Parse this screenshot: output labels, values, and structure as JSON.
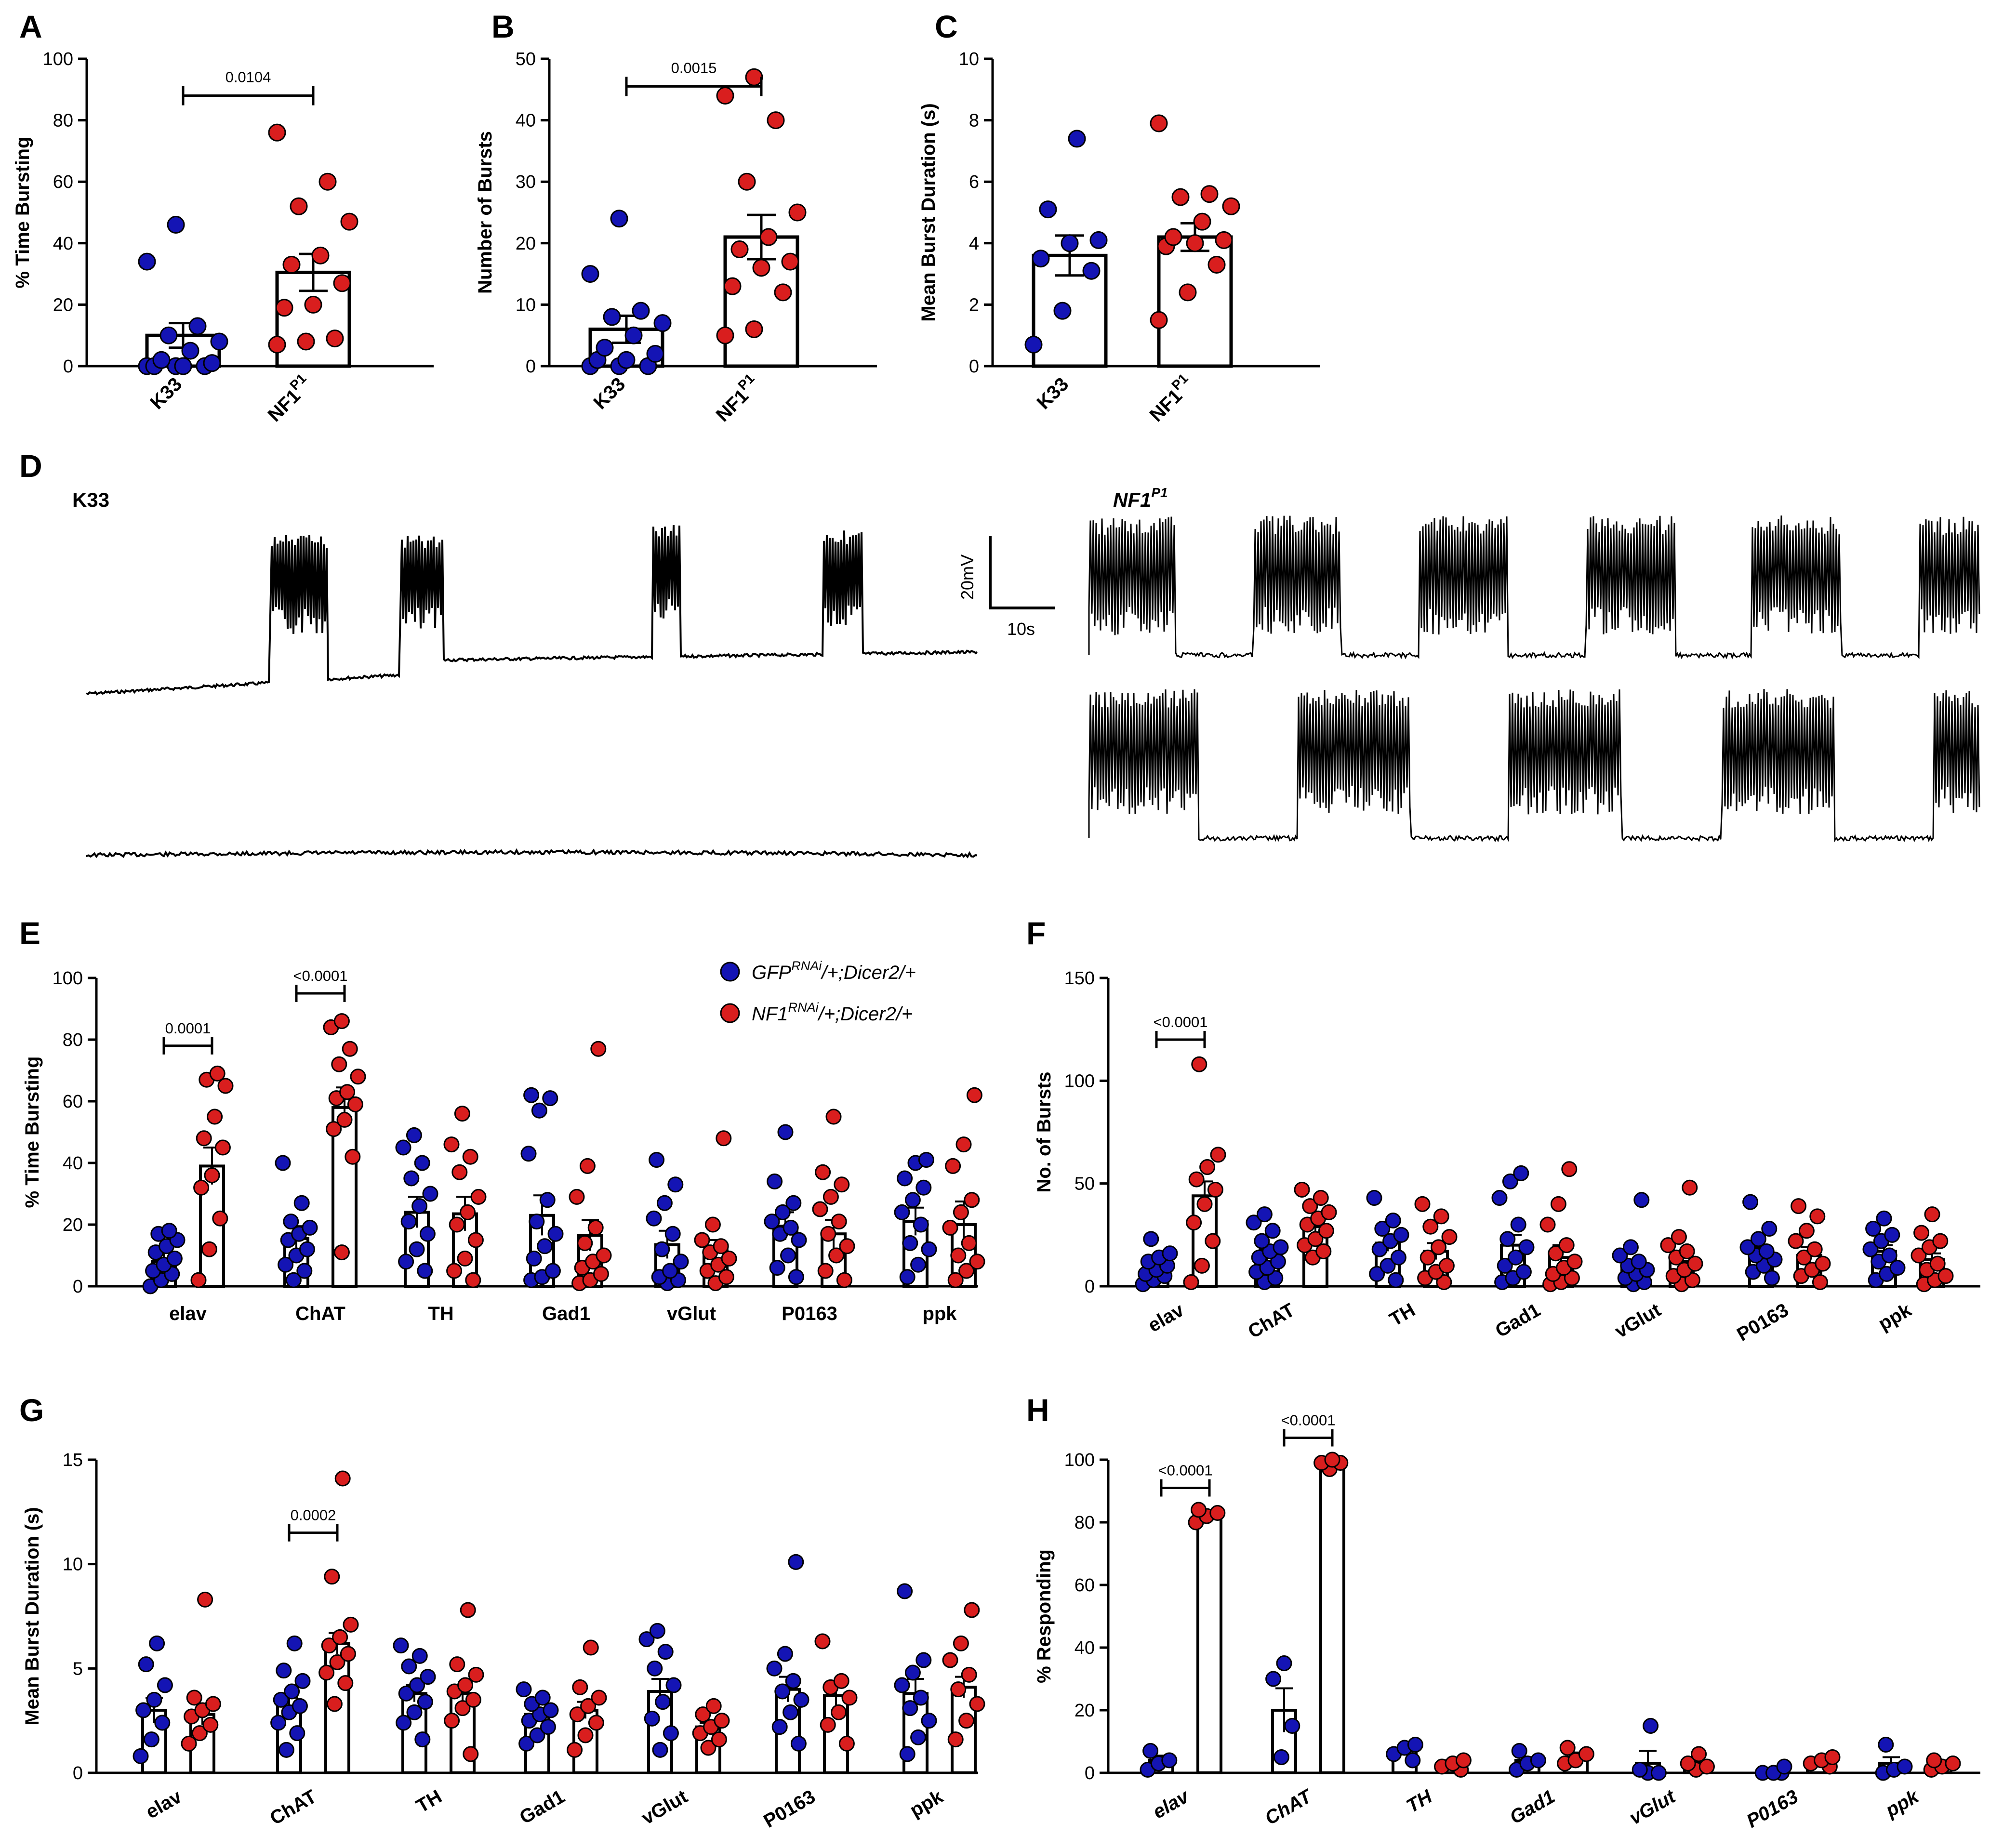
{
  "colors": {
    "genotype_a": "#1414b4",
    "genotype_b": "#d91e1e",
    "axis": "#000000"
  },
  "panel_labels": [
    "A",
    "B",
    "C",
    "D",
    "E",
    "F",
    "G",
    "H"
  ],
  "legend": {
    "a": "GFP",
    "a_sup": "RNAi",
    "a_rest": "/+;Dicer2/+",
    "b": "NF1",
    "b_sup": "RNAi",
    "b_rest": "/+;Dicer2/+"
  },
  "traces": {
    "left_label": "K33",
    "right_label_main": "NF1",
    "right_label_sup": "P1",
    "scale_v": "20mV",
    "scale_t": "10s"
  },
  "chart_data": [
    {
      "id": "A",
      "type": "bar",
      "ylabel": "% Time Bursting",
      "ylim": [
        0,
        100
      ],
      "yticks": [
        0,
        20,
        40,
        60,
        80,
        100
      ],
      "categories": [
        {
          "main": "K33",
          "sup": ""
        },
        {
          "main": "NF1",
          "sup": "P1"
        }
      ],
      "series": [
        {
          "color": "genotype_a",
          "mean": 10,
          "sem": 4,
          "points": [
            0,
            0,
            0,
            0,
            0,
            1,
            2,
            5,
            8,
            10,
            13,
            34,
            46
          ]
        },
        {
          "color": "genotype_b",
          "mean": 30.5,
          "sem": 6,
          "points": [
            7,
            8,
            9,
            19,
            20,
            27,
            33,
            36,
            47,
            52,
            60,
            76
          ]
        }
      ],
      "significance": [
        {
          "label": "0.0104",
          "from": 0,
          "to": 1,
          "y": 88
        }
      ]
    },
    {
      "id": "B",
      "type": "bar",
      "ylabel": "Number of Bursts",
      "ylim": [
        0,
        50
      ],
      "yticks": [
        0,
        10,
        20,
        30,
        40,
        50
      ],
      "categories": [
        {
          "main": "K33",
          "sup": ""
        },
        {
          "main": "NF1",
          "sup": "P1"
        }
      ],
      "series": [
        {
          "color": "genotype_a",
          "mean": 6,
          "sem": 2.2,
          "points": [
            0,
            0,
            0,
            1,
            1,
            2,
            3,
            5,
            7,
            8,
            9,
            15,
            24
          ]
        },
        {
          "color": "genotype_b",
          "mean": 21,
          "sem": 3.6,
          "points": [
            5,
            6,
            12,
            13,
            16,
            17,
            19,
            21,
            25,
            30,
            40,
            44,
            47
          ]
        }
      ],
      "significance": [
        {
          "label": "0.0015",
          "from": 0,
          "to": 1,
          "y": 45.5
        }
      ]
    },
    {
      "id": "C",
      "type": "bar",
      "ylabel": "Mean Burst Duration (s)",
      "ylim": [
        0,
        10
      ],
      "yticks": [
        0,
        2,
        4,
        6,
        8,
        10
      ],
      "categories": [
        {
          "main": "K33",
          "sup": ""
        },
        {
          "main": "NF1",
          "sup": "P1"
        }
      ],
      "series": [
        {
          "color": "genotype_a",
          "mean": 3.6,
          "sem": 0.65,
          "points": [
            0.7,
            1.8,
            3.1,
            3.5,
            4.0,
            4.1,
            5.1,
            7.4
          ]
        },
        {
          "color": "genotype_b",
          "mean": 4.2,
          "sem": 0.45,
          "points": [
            1.5,
            2.4,
            3.3,
            3.9,
            4.0,
            4.1,
            4.2,
            4.7,
            5.2,
            5.5,
            5.6,
            7.9
          ]
        }
      ],
      "significance": []
    },
    {
      "id": "E",
      "type": "bar",
      "ylabel": "% Time Bursting",
      "ylim": [
        0,
        100
      ],
      "yticks": [
        0,
        20,
        40,
        60,
        80,
        100
      ],
      "categories": [
        "elav",
        "ChAT",
        "TH",
        "Gad1",
        "vGlut",
        "P0163",
        "ppk"
      ],
      "series": [
        {
          "color": "genotype_a",
          "means": [
            8,
            15.5,
            24,
            23,
            13.5,
            19.5,
            21
          ],
          "sems": [
            3,
            4,
            5,
            6.5,
            4.5,
            4.5,
            4.5
          ],
          "points": [
            [
              0,
              2,
              4,
              5,
              7,
              9,
              11,
              13,
              15,
              17,
              18
            ],
            [
              2,
              5,
              7,
              10,
              12,
              15,
              17,
              19,
              21,
              27,
              40
            ],
            [
              5,
              8,
              12,
              17,
              21,
              26,
              30,
              35,
              40,
              45,
              49
            ],
            [
              2,
              3,
              5,
              9,
              13,
              17,
              21,
              28,
              43,
              57,
              61,
              62
            ],
            [
              1,
              2,
              3,
              5,
              8,
              12,
              17,
              22,
              27,
              33,
              41
            ],
            [
              3,
              6,
              10,
              15,
              17,
              19,
              21,
              24,
              27,
              34,
              50
            ],
            [
              3,
              7,
              12,
              14,
              20,
              24,
              28,
              32,
              35,
              40,
              41
            ]
          ]
        },
        {
          "color": "genotype_b",
          "means": [
            39,
            58,
            23.5,
            16.5,
            11.5,
            17,
            20
          ],
          "sems": [
            6,
            6.5,
            5.5,
            5,
            3.5,
            4.5,
            7.5
          ],
          "points": [
            [
              2,
              12,
              22,
              32,
              36,
              45,
              48,
              55,
              65,
              67,
              69
            ],
            [
              11,
              42,
              51,
              54,
              59,
              61,
              63,
              68,
              72,
              77,
              84,
              86
            ],
            [
              2,
              5,
              9,
              15,
              20,
              24,
              29,
              37,
              42,
              46,
              56
            ],
            [
              1,
              2,
              4,
              6,
              8,
              10,
              14,
              19,
              29,
              39,
              77
            ],
            [
              1,
              3,
              5,
              7,
              9,
              11,
              13,
              15,
              20,
              48
            ],
            [
              2,
              5,
              10,
              13,
              17,
              21,
              25,
              29,
              33,
              37,
              55
            ],
            [
              2,
              5,
              8,
              10,
              14,
              19,
              24,
              28,
              39,
              46,
              62
            ]
          ]
        }
      ],
      "significance": [
        {
          "label": "0.0001",
          "category": 0,
          "y": 78
        },
        {
          "label": "<0.0001",
          "category": 1,
          "y": 95
        }
      ]
    },
    {
      "id": "F",
      "type": "bar",
      "ylabel": "No. of Bursts",
      "ylim": [
        0,
        150
      ],
      "yticks": [
        0,
        50,
        100,
        150
      ],
      "categories": [
        "elav",
        "ChAT",
        "TH",
        "Gad1",
        "vGlut",
        "P0163",
        "ppk"
      ],
      "series": [
        {
          "color": "genotype_a",
          "means": [
            9,
            15,
            21,
            20,
            10,
            15,
            17
          ],
          "sems": [
            3,
            3,
            4,
            5,
            3,
            4,
            3
          ],
          "points": [
            [
              1,
              3,
              5,
              6,
              8,
              10,
              12,
              14,
              16,
              23
            ],
            [
              2,
              4,
              7,
              9,
              12,
              14,
              17,
              19,
              22,
              27,
              31,
              35
            ],
            [
              3,
              6,
              10,
              14,
              18,
              22,
              25,
              28,
              32,
              43
            ],
            [
              2,
              4,
              7,
              10,
              14,
              19,
              23,
              30,
              43,
              51,
              55
            ],
            [
              1,
              2,
              4,
              6,
              8,
              10,
              12,
              15,
              19,
              42
            ],
            [
              4,
              7,
              10,
              13,
              15,
              17,
              19,
              23,
              28,
              41
            ],
            [
              3,
              6,
              9,
              12,
              15,
              18,
              22,
              25,
              28,
              33
            ]
          ]
        },
        {
          "color": "genotype_b",
          "means": [
            44,
            29,
            17,
            14,
            12,
            15,
            13
          ],
          "sems": [
            7,
            3,
            4,
            6,
            4,
            4,
            3
          ],
          "points": [
            [
              2,
              10,
              22,
              31,
              40,
              47,
              52,
              58,
              64,
              108
            ],
            [
              14,
              17,
              20,
              23,
              27,
              30,
              33,
              36,
              39,
              43,
              47
            ],
            [
              2,
              4,
              7,
              10,
              14,
              19,
              24,
              29,
              34,
              40
            ],
            [
              1,
              2,
              4,
              6,
              9,
              12,
              16,
              20,
              30,
              40,
              57
            ],
            [
              1,
              3,
              5,
              8,
              11,
              14,
              17,
              20,
              24,
              48
            ],
            [
              2,
              5,
              8,
              11,
              14,
              18,
              22,
              27,
              34,
              39
            ],
            [
              1,
              3,
              5,
              8,
              11,
              15,
              19,
              22,
              26,
              35
            ]
          ]
        }
      ],
      "significance": [
        {
          "label": "<0.0001",
          "category": 0,
          "y": 120
        }
      ]
    },
    {
      "id": "G",
      "type": "bar",
      "ylabel": "Mean Burst Duration (s)",
      "ylim": [
        0,
        15
      ],
      "yticks": [
        0,
        5,
        10,
        15
      ],
      "categories": [
        "elav",
        "ChAT",
        "TH",
        "Gad1",
        "vGlut",
        "P0163",
        "ppk"
      ],
      "series": [
        {
          "color": "genotype_a",
          "means": [
            3,
            3.2,
            3.8,
            2.8,
            3.9,
            4,
            3.8
          ],
          "sems": [
            0.6,
            0.4,
            0.4,
            0.3,
            0.6,
            0.6,
            0.7
          ],
          "points": [
            [
              0.8,
              1.6,
              2.4,
              3.0,
              3.5,
              4.2,
              5.2,
              6.2
            ],
            [
              1.1,
              1.9,
              2.4,
              2.9,
              3.2,
              3.5,
              3.9,
              4.4,
              4.9,
              6.2
            ],
            [
              1.6,
              2.4,
              2.9,
              3.4,
              3.8,
              4.2,
              4.6,
              5.1,
              5.6,
              6.1
            ],
            [
              1.4,
              1.8,
              2.2,
              2.5,
              2.8,
              3.0,
              3.3,
              3.6,
              4.0
            ],
            [
              1.1,
              1.9,
              2.6,
              3.4,
              4.2,
              5.0,
              5.8,
              6.4,
              6.8
            ],
            [
              1.4,
              2.2,
              2.9,
              3.5,
              3.9,
              4.4,
              5.0,
              5.7,
              10.1
            ],
            [
              0.9,
              1.7,
              2.5,
              3.1,
              3.6,
              4.2,
              4.8,
              5.4,
              8.7
            ]
          ]
        },
        {
          "color": "genotype_b",
          "means": [
            2.8,
            6.2,
            3.8,
            3,
            2.2,
            3.7,
            4.1
          ],
          "sems": [
            0.5,
            0.5,
            0.4,
            0.4,
            0.2,
            0.5,
            0.5
          ],
          "points": [
            [
              1.4,
              1.9,
              2.3,
              2.7,
              3.0,
              3.3,
              3.6,
              8.3
            ],
            [
              3.3,
              4.3,
              4.8,
              5.3,
              5.7,
              6.1,
              6.5,
              7.1,
              9.4,
              14.1
            ],
            [
              0.9,
              2.5,
              3.1,
              3.5,
              3.9,
              4.2,
              4.7,
              5.2,
              7.8
            ],
            [
              1.1,
              1.8,
              2.4,
              2.8,
              3.2,
              3.6,
              4.1,
              6.0
            ],
            [
              1.2,
              1.6,
              1.9,
              2.2,
              2.5,
              2.8,
              3.2
            ],
            [
              1.4,
              2.3,
              2.9,
              3.6,
              4.1,
              4.4,
              6.3
            ],
            [
              1.6,
              2.5,
              3.3,
              4.0,
              4.7,
              5.4,
              6.2,
              7.8
            ]
          ]
        }
      ],
      "significance": [
        {
          "label": "0.0002",
          "category": 1,
          "y": 11.5
        }
      ]
    },
    {
      "id": "H",
      "type": "bar",
      "ylabel": "% Responding",
      "ylim": [
        0,
        100
      ],
      "yticks": [
        0,
        20,
        40,
        60,
        80,
        100
      ],
      "categories": [
        "elav",
        "ChAT",
        "TH",
        "Gad1",
        "vGlut",
        "P0163",
        "ppk"
      ],
      "italic_categories": true,
      "series": [
        {
          "color": "genotype_a",
          "means": [
            4,
            20,
            7,
            4,
            3,
            1,
            3
          ],
          "sems": [
            1.5,
            7,
            1,
            1,
            4,
            0.5,
            2
          ],
          "points": [
            [
              1,
              3,
              4,
              7
            ],
            [
              5,
              15,
              30,
              35
            ],
            [
              4,
              6,
              8,
              9
            ],
            [
              1,
              3,
              4,
              7
            ],
            [
              0,
              0,
              1,
              15
            ],
            [
              0,
              0,
              0,
              2
            ],
            [
              0,
              1,
              2,
              9
            ]
          ]
        },
        {
          "color": "genotype_b",
          "means": [
            82,
            99,
            3,
            5,
            3,
            3,
            2
          ],
          "sems": [
            1.5,
            1,
            1,
            1.5,
            1.5,
            1,
            1
          ],
          "points": [
            [
              80,
              82,
              83,
              84
            ],
            [
              97,
              99,
              99,
              100
            ],
            [
              1,
              2,
              3,
              4
            ],
            [
              3,
              4,
              6,
              8
            ],
            [
              1,
              2,
              3,
              6
            ],
            [
              2,
              3,
              4,
              5
            ],
            [
              1,
              2,
              3,
              4
            ]
          ]
        }
      ],
      "significance": [
        {
          "label": "<0.0001",
          "category": 0,
          "y": 91
        },
        {
          "label": "<0.0001",
          "category": 1,
          "y": 107
        }
      ]
    }
  ]
}
